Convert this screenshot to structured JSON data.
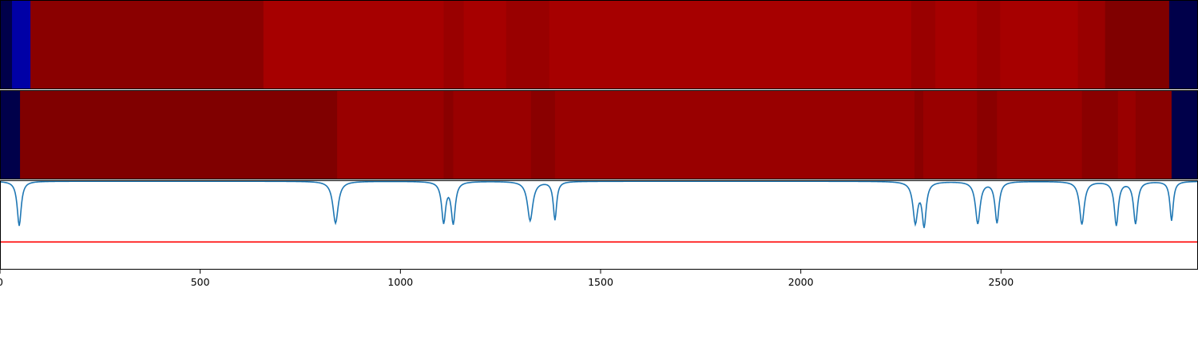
{
  "chart_data": [
    {
      "type": "heatmap",
      "rows": 1,
      "colormap": "seismic",
      "segments": [
        {
          "x0": 0,
          "x1": 30,
          "color": "#00004a"
        },
        {
          "x0": 30,
          "x1": 76,
          "color": "#0000a6"
        },
        {
          "x0": 76,
          "x1": 658,
          "color": "#8a0000"
        },
        {
          "x0": 658,
          "x1": 1108,
          "color": "#a60000"
        },
        {
          "x0": 1108,
          "x1": 1158,
          "color": "#990000"
        },
        {
          "x0": 1158,
          "x1": 1264,
          "color": "#a60000"
        },
        {
          "x0": 1264,
          "x1": 1372,
          "color": "#990000"
        },
        {
          "x0": 1372,
          "x1": 2276,
          "color": "#a60000"
        },
        {
          "x0": 2276,
          "x1": 2336,
          "color": "#990000"
        },
        {
          "x0": 2336,
          "x1": 2440,
          "color": "#a60000"
        },
        {
          "x0": 2440,
          "x1": 2498,
          "color": "#990000"
        },
        {
          "x0": 2498,
          "x1": 2692,
          "color": "#a60000"
        },
        {
          "x0": 2692,
          "x1": 2760,
          "color": "#990000"
        },
        {
          "x0": 2760,
          "x1": 2920,
          "color": "#800000"
        },
        {
          "x0": 2920,
          "x1": 2990,
          "color": "#00004a"
        }
      ]
    },
    {
      "type": "heatmap",
      "rows": 1,
      "colormap": "seismic",
      "segments": [
        {
          "x0": 0,
          "x1": 50,
          "color": "#00004a"
        },
        {
          "x0": 50,
          "x1": 842,
          "color": "#800000"
        },
        {
          "x0": 842,
          "x1": 1108,
          "color": "#990000"
        },
        {
          "x0": 1108,
          "x1": 1132,
          "color": "#8a0000"
        },
        {
          "x0": 1132,
          "x1": 1326,
          "color": "#990000"
        },
        {
          "x0": 1326,
          "x1": 1386,
          "color": "#8a0000"
        },
        {
          "x0": 1386,
          "x1": 2284,
          "color": "#990000"
        },
        {
          "x0": 2284,
          "x1": 2306,
          "color": "#8a0000"
        },
        {
          "x0": 2306,
          "x1": 2440,
          "color": "#990000"
        },
        {
          "x0": 2440,
          "x1": 2490,
          "color": "#8a0000"
        },
        {
          "x0": 2490,
          "x1": 2702,
          "color": "#990000"
        },
        {
          "x0": 2702,
          "x1": 2792,
          "color": "#8a0000"
        },
        {
          "x0": 2792,
          "x1": 2836,
          "color": "#990000"
        },
        {
          "x0": 2836,
          "x1": 2926,
          "color": "#8a0000"
        },
        {
          "x0": 2926,
          "x1": 2990,
          "color": "#00004a"
        }
      ]
    },
    {
      "type": "line",
      "xlim": [
        0,
        2990
      ],
      "ylim": [
        0,
        1
      ],
      "baseline": 0.99,
      "series": [
        {
          "color": "#1f77b4",
          "dips": [
            {
              "x": 48,
              "depth": 0.5,
              "width": 6
            },
            {
              "x": 838,
              "depth": 0.47,
              "width": 8
            },
            {
              "x": 1108,
              "depth": 0.45,
              "width": 6
            },
            {
              "x": 1132,
              "depth": 0.46,
              "width": 6
            },
            {
              "x": 1324,
              "depth": 0.44,
              "width": 8
            },
            {
              "x": 1386,
              "depth": 0.43,
              "width": 5
            },
            {
              "x": 2286,
              "depth": 0.45,
              "width": 7
            },
            {
              "x": 2308,
              "depth": 0.48,
              "width": 6
            },
            {
              "x": 2442,
              "depth": 0.47,
              "width": 7
            },
            {
              "x": 2490,
              "depth": 0.46,
              "width": 6
            },
            {
              "x": 2702,
              "depth": 0.48,
              "width": 7
            },
            {
              "x": 2788,
              "depth": 0.49,
              "width": 6
            },
            {
              "x": 2836,
              "depth": 0.47,
              "width": 6
            },
            {
              "x": 2926,
              "depth": 0.44,
              "width": 5
            }
          ]
        },
        {
          "color": "#ff0000",
          "constant": 0.31
        }
      ]
    }
  ],
  "axis": {
    "xticks": [
      0,
      500,
      1000,
      1500,
      2000,
      2500
    ],
    "xtick_labels": [
      "0",
      "500",
      "1000",
      "1500",
      "2000",
      "2500"
    ],
    "xlim": [
      0,
      2990
    ]
  }
}
